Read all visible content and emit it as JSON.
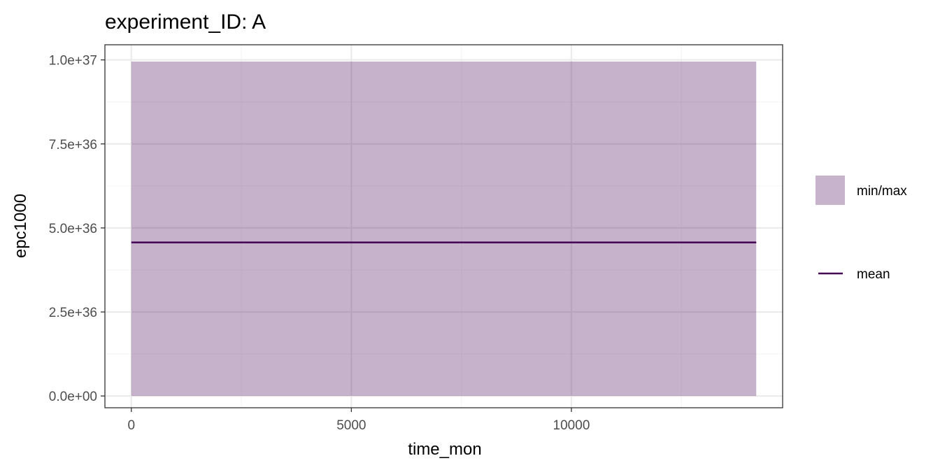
{
  "chart_data": {
    "type": "area",
    "title": "experiment_ID: A",
    "xlabel": "time_mon",
    "ylabel": "epc1000",
    "xlim": [
      -600,
      14800
    ],
    "ylim": [
      -3.5e+35,
      1.045e+37
    ],
    "x_ticks": [
      0,
      5000,
      10000
    ],
    "x_tick_labels": [
      "0",
      "5000",
      "10000"
    ],
    "x_minor_ticks": [
      2500,
      7500,
      12500
    ],
    "y_ticks": [
      0,
      2.5e+36,
      5e+36,
      7.5e+36,
      1e+37
    ],
    "y_tick_labels": [
      "0.0e+00",
      "2.5e+36",
      "5.0e+36",
      "7.5e+36",
      "1.0e+37"
    ],
    "y_minor_ticks": [
      1.25e+36,
      3.75e+36,
      6.25e+36,
      8.75e+36
    ],
    "grid": true,
    "legend_position": "right",
    "series": [
      {
        "name": "min/max",
        "kind": "ribbon",
        "x": [
          0,
          14200
        ],
        "ymin": [
          0,
          0
        ],
        "ymax": [
          9.95e+36,
          9.95e+36
        ],
        "color": "#c7b3cc"
      },
      {
        "name": "mean",
        "kind": "line",
        "x": [
          0,
          14200
        ],
        "y": [
          4.57e+36,
          4.57e+36
        ],
        "color": "#440154"
      }
    ],
    "colors": {
      "panel_border": "#333333",
      "grid_major": "#ebebeb",
      "grid_minor": "#f5f5f5",
      "tick": "#333333"
    }
  }
}
